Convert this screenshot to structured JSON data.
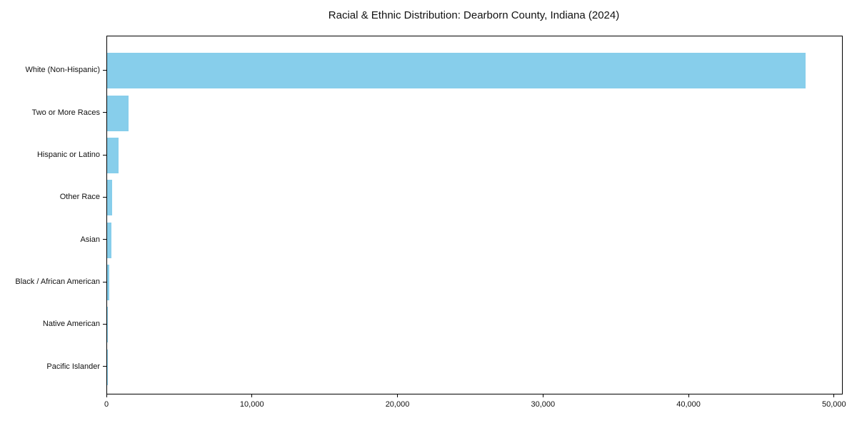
{
  "figure": {
    "background_color": "#ffffff",
    "text_color": "#111111",
    "axis_color": "#000000"
  },
  "chart_data": {
    "type": "bar",
    "orientation": "horizontal",
    "title": "Racial & Ethnic Distribution: Dearborn County, Indiana (2024)",
    "xlabel": "",
    "ylabel": "",
    "grid": false,
    "legend": null,
    "bar_color": "#87CEEB",
    "categories": [
      "White (Non-Hispanic)",
      "Two or More Races",
      "Hispanic or Latino",
      "Other Race",
      "Asian",
      "Black / African American",
      "Native American",
      "Pacific Islander"
    ],
    "values": [
      48000,
      1450,
      770,
      340,
      290,
      130,
      20,
      5
    ],
    "xlim": [
      0,
      50500
    ],
    "x_ticks": [
      {
        "value": 0,
        "label": "0"
      },
      {
        "value": 10000,
        "label": "10,000"
      },
      {
        "value": 20000,
        "label": "20,000"
      },
      {
        "value": 30000,
        "label": "30,000"
      },
      {
        "value": 40000,
        "label": "40,000"
      },
      {
        "value": 50000,
        "label": "50,000"
      }
    ]
  }
}
